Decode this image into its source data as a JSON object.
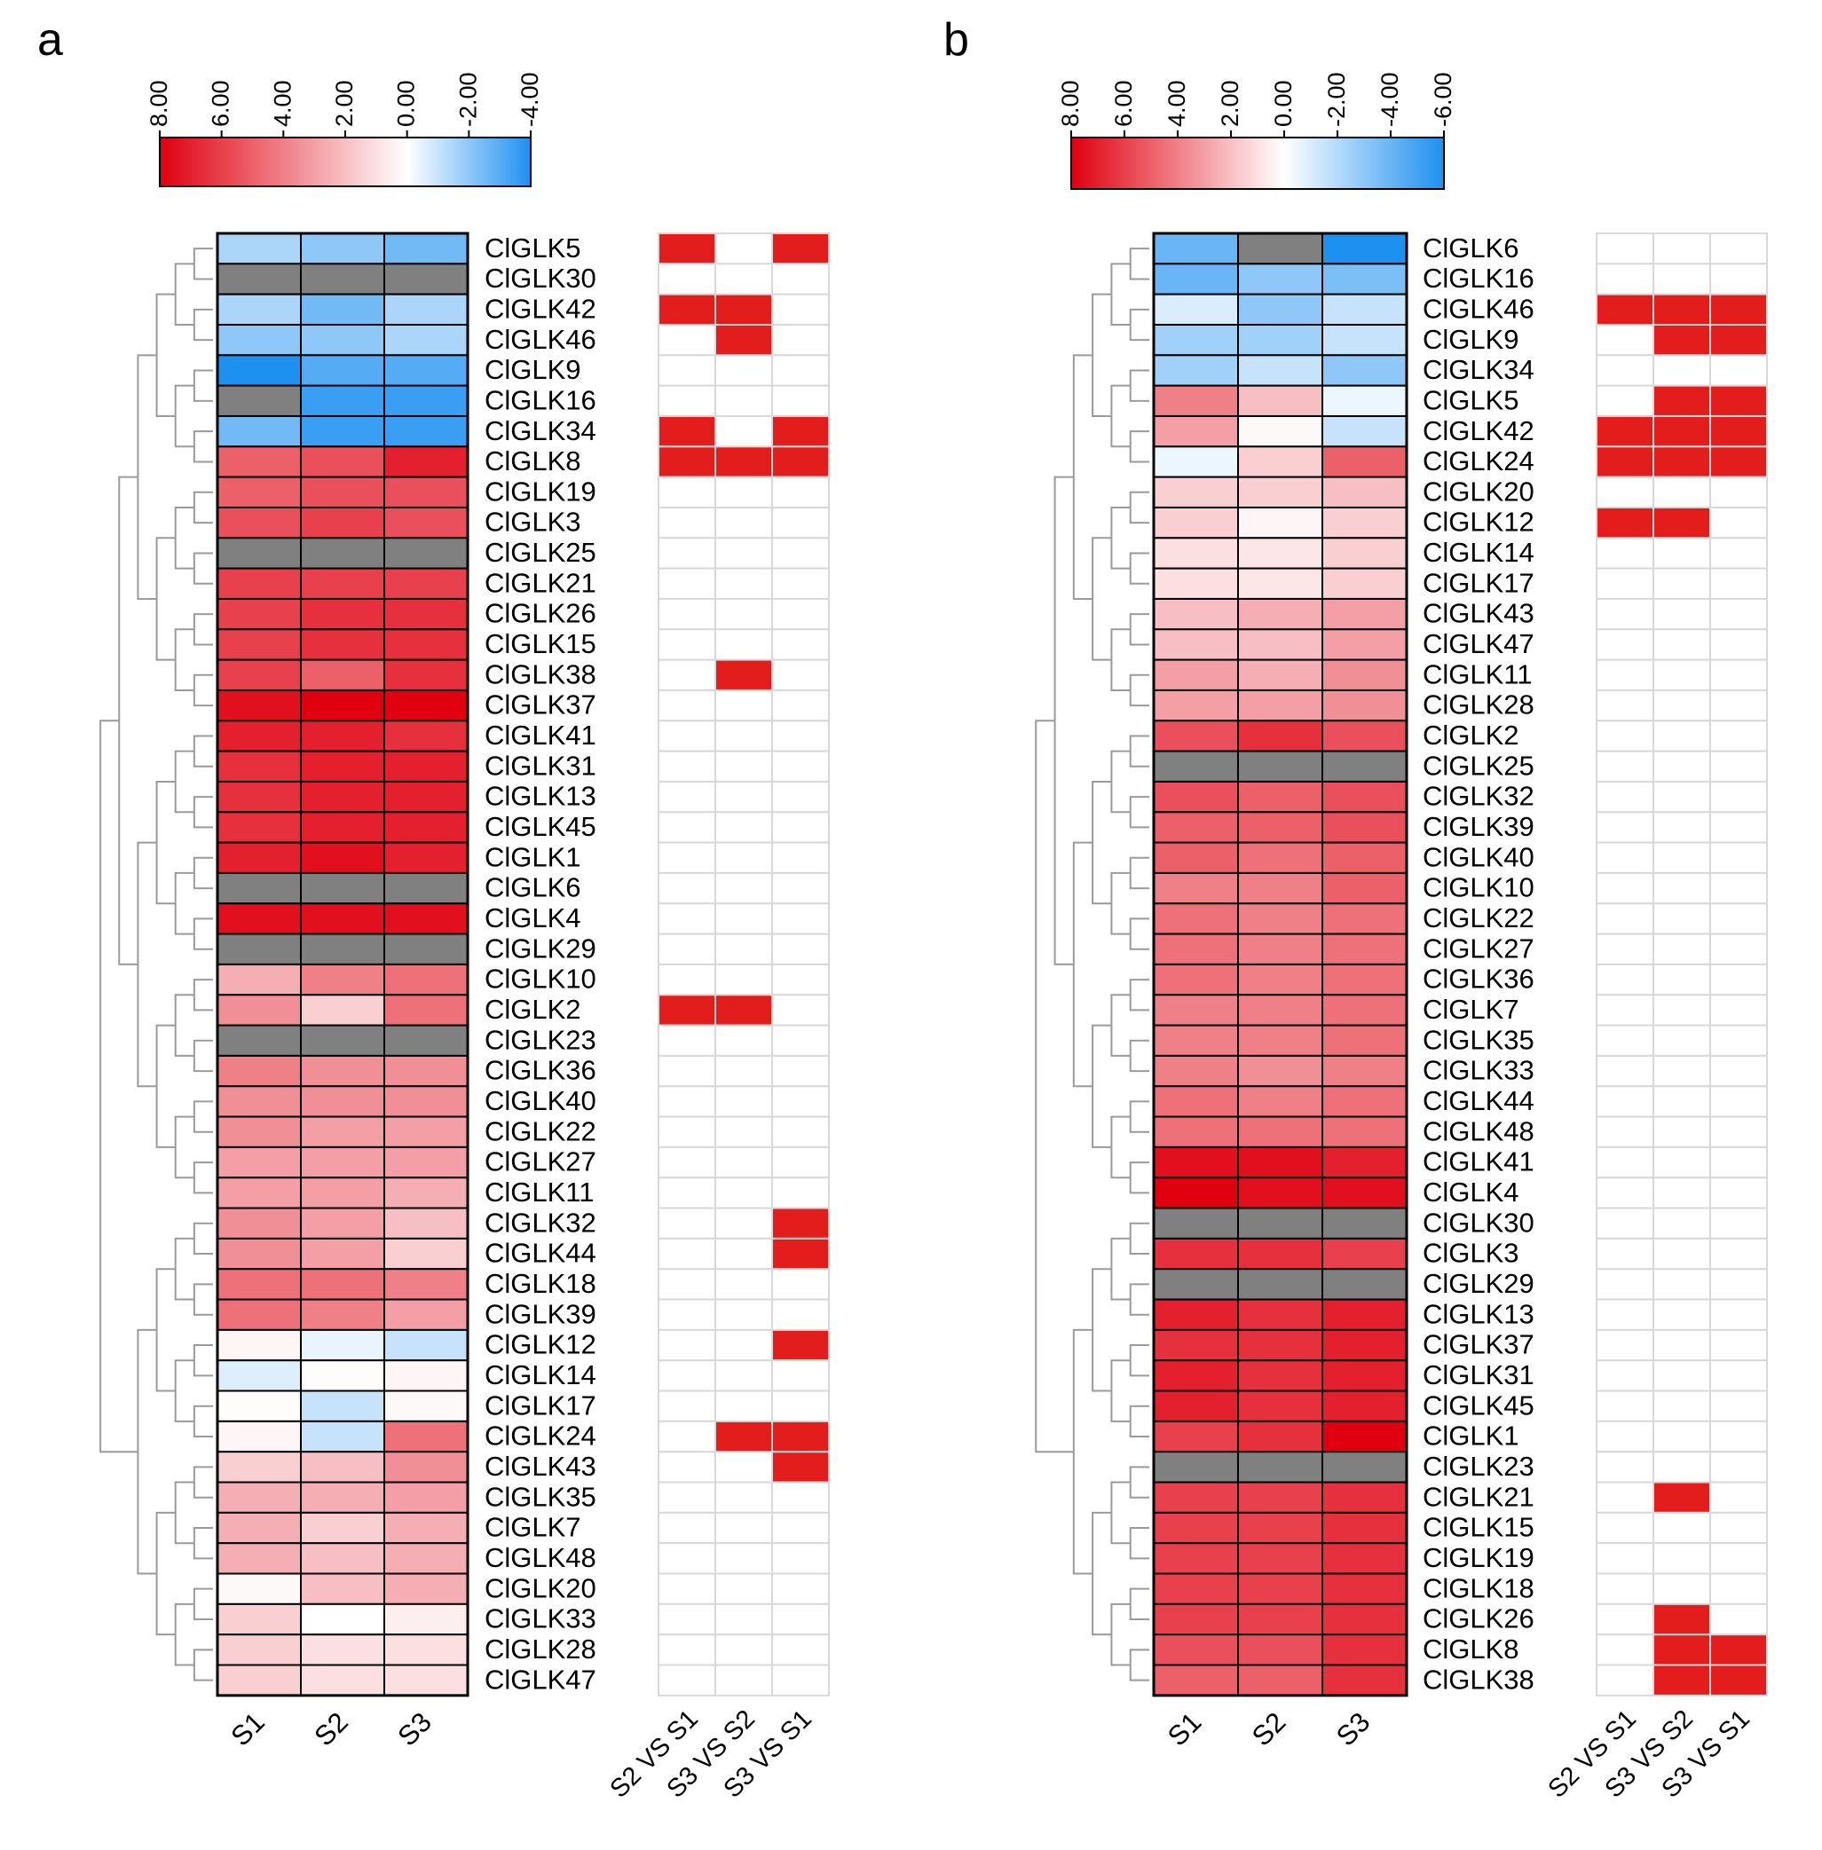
{
  "figure": {
    "panels": [
      {
        "panel_label": "a",
        "colorbar_ticks": [
          "8.00",
          "6.00",
          "4.00",
          "2.00",
          "0.00",
          "-2.00",
          "-4.00"
        ],
        "colorbar_values": [
          8,
          6,
          4,
          2,
          0,
          -2,
          -4
        ],
        "sample_labels": [
          "S1",
          "S2",
          "S3"
        ],
        "comparison_labels": [
          "S2 VS S1",
          "S3 VS S2",
          "S3 VS S1"
        ],
        "genes": [
          "ClGLK5",
          "ClGLK30",
          "ClGLK42",
          "ClGLK46",
          "ClGLK9",
          "ClGLK16",
          "ClGLK34",
          "ClGLK8",
          "ClGLK19",
          "ClGLK3",
          "ClGLK25",
          "ClGLK21",
          "ClGLK26",
          "ClGLK15",
          "ClGLK38",
          "ClGLK37",
          "ClGLK41",
          "ClGLK31",
          "ClGLK13",
          "ClGLK45",
          "ClGLK1",
          "ClGLK6",
          "ClGLK4",
          "ClGLK29",
          "ClGLK10",
          "ClGLK2",
          "ClGLK23",
          "ClGLK36",
          "ClGLK40",
          "ClGLK22",
          "ClGLK27",
          "ClGLK11",
          "ClGLK32",
          "ClGLK44",
          "ClGLK18",
          "ClGLK39",
          "ClGLK12",
          "ClGLK14",
          "ClGLK17",
          "ClGLK24",
          "ClGLK43",
          "ClGLK35",
          "ClGLK7",
          "ClGLK48",
          "ClGLK20",
          "ClGLK33",
          "ClGLK28",
          "ClGLK47"
        ]
      },
      {
        "panel_label": "b",
        "colorbar_ticks": [
          "8.00",
          "6.00",
          "4.00",
          "2.00",
          "0.00",
          "-2.00",
          "-4.00",
          "-6.00"
        ],
        "colorbar_values": [
          8,
          6,
          4,
          2,
          0,
          -2,
          -4,
          -6
        ],
        "sample_labels": [
          "S1",
          "S2",
          "S3"
        ],
        "comparison_labels": [
          "S2 VS S1",
          "S3 VS S2",
          "S3 VS S1"
        ],
        "genes": [
          "ClGLK6",
          "ClGLK16",
          "ClGLK46",
          "ClGLK9",
          "ClGLK34",
          "ClGLK5",
          "ClGLK42",
          "ClGLK24",
          "ClGLK20",
          "ClGLK12",
          "ClGLK14",
          "ClGLK17",
          "ClGLK43",
          "ClGLK47",
          "ClGLK11",
          "ClGLK28",
          "ClGLK2",
          "ClGLK25",
          "ClGLK32",
          "ClGLK39",
          "ClGLK40",
          "ClGLK10",
          "ClGLK22",
          "ClGLK27",
          "ClGLK36",
          "ClGLK7",
          "ClGLK35",
          "ClGLK33",
          "ClGLK44",
          "ClGLK48",
          "ClGLK41",
          "ClGLK4",
          "ClGLK30",
          "ClGLK3",
          "ClGLK29",
          "ClGLK13",
          "ClGLK37",
          "ClGLK31",
          "ClGLK45",
          "ClGLK1",
          "ClGLK23",
          "ClGLK21",
          "ClGLK15",
          "ClGLK19",
          "ClGLK18",
          "ClGLK26",
          "ClGLK8",
          "ClGLK38"
        ]
      }
    ]
  },
  "chart_data": [
    {
      "type": "heatmap",
      "title": "a",
      "color_scale": {
        "min": -4,
        "max": 8,
        "low_color": "#1e90f0",
        "mid_color": "#ffffff",
        "high_color": "#e00010",
        "na_color": "#808080"
      },
      "x": [
        "S1",
        "S2",
        "S3"
      ],
      "y": [
        "ClGLK5",
        "ClGLK30",
        "ClGLK42",
        "ClGLK46",
        "ClGLK9",
        "ClGLK16",
        "ClGLK34",
        "ClGLK8",
        "ClGLK19",
        "ClGLK3",
        "ClGLK25",
        "ClGLK21",
        "ClGLK26",
        "ClGLK15",
        "ClGLK38",
        "ClGLK37",
        "ClGLK41",
        "ClGLK31",
        "ClGLK13",
        "ClGLK45",
        "ClGLK1",
        "ClGLK6",
        "ClGLK4",
        "ClGLK29",
        "ClGLK10",
        "ClGLK2",
        "ClGLK23",
        "ClGLK36",
        "ClGLK40",
        "ClGLK22",
        "ClGLK27",
        "ClGLK11",
        "ClGLK32",
        "ClGLK44",
        "ClGLK18",
        "ClGLK39",
        "ClGLK12",
        "ClGLK14",
        "ClGLK17",
        "ClGLK24",
        "ClGLK43",
        "ClGLK35",
        "ClGLK7",
        "ClGLK48",
        "ClGLK20",
        "ClGLK33",
        "ClGLK28",
        "ClGLK47"
      ],
      "values": [
        [
          -1.5,
          -2,
          -2.5
        ],
        [
          null,
          null,
          null
        ],
        [
          -1.5,
          -2.5,
          -1.5
        ],
        [
          -2,
          -2,
          -1.5
        ],
        [
          -4,
          -3,
          -3
        ],
        [
          null,
          -3.5,
          -3.5
        ],
        [
          -2.5,
          -3.5,
          -3.5
        ],
        [
          5,
          5.5,
          7
        ],
        [
          5,
          5.5,
          5.5
        ],
        [
          5.5,
          6,
          5.5
        ],
        [
          null,
          null,
          null
        ],
        [
          6,
          6,
          6
        ],
        [
          6,
          6.5,
          6.5
        ],
        [
          6,
          6.5,
          6.5
        ],
        [
          6,
          5,
          6.5
        ],
        [
          7.5,
          8,
          8
        ],
        [
          7,
          7,
          6.5
        ],
        [
          6.5,
          7,
          7
        ],
        [
          6.5,
          7,
          7
        ],
        [
          6.5,
          7,
          7
        ],
        [
          7,
          7.5,
          7
        ],
        [
          null,
          null,
          null
        ],
        [
          7.5,
          7.5,
          7.5
        ],
        [
          null,
          null,
          null
        ],
        [
          2.5,
          4,
          4.5
        ],
        [
          3.5,
          1.5,
          4.5
        ],
        [
          null,
          null,
          null
        ],
        [
          4,
          3.5,
          3.5
        ],
        [
          3.5,
          3.5,
          3.5
        ],
        [
          3.5,
          3,
          3
        ],
        [
          3,
          3,
          3
        ],
        [
          3,
          3,
          2.5
        ],
        [
          3.5,
          3,
          2
        ],
        [
          3.5,
          3,
          1.5
        ],
        [
          4.5,
          4.5,
          4
        ],
        [
          4.5,
          4,
          3
        ],
        [
          0.3,
          -0.4,
          -1
        ],
        [
          -0.6,
          0.1,
          0.3
        ],
        [
          0.1,
          -1,
          0.2
        ],
        [
          0.3,
          -1,
          4.5
        ],
        [
          1.5,
          2,
          3.5
        ],
        [
          2.5,
          2.5,
          3
        ],
        [
          2.5,
          1.5,
          2.5
        ],
        [
          2.5,
          2,
          2.5
        ],
        [
          0.2,
          2,
          2.5
        ],
        [
          1.5,
          0,
          0.5
        ],
        [
          1.5,
          1,
          1
        ],
        [
          1.5,
          1,
          1
        ]
      ],
      "significance_columns": [
        "S2 VS S1",
        "S3 VS S2",
        "S3 VS S1"
      ],
      "significant": [
        [
          1,
          0,
          1
        ],
        [
          0,
          0,
          0
        ],
        [
          1,
          1,
          0
        ],
        [
          0,
          1,
          0
        ],
        [
          0,
          0,
          0
        ],
        [
          0,
          0,
          0
        ],
        [
          1,
          0,
          1
        ],
        [
          1,
          1,
          1
        ],
        [
          0,
          0,
          0
        ],
        [
          0,
          0,
          0
        ],
        [
          0,
          0,
          0
        ],
        [
          0,
          0,
          0
        ],
        [
          0,
          0,
          0
        ],
        [
          0,
          0,
          0
        ],
        [
          0,
          1,
          0
        ],
        [
          0,
          0,
          0
        ],
        [
          0,
          0,
          0
        ],
        [
          0,
          0,
          0
        ],
        [
          0,
          0,
          0
        ],
        [
          0,
          0,
          0
        ],
        [
          0,
          0,
          0
        ],
        [
          0,
          0,
          0
        ],
        [
          0,
          0,
          0
        ],
        [
          0,
          0,
          0
        ],
        [
          0,
          0,
          0
        ],
        [
          1,
          1,
          0
        ],
        [
          0,
          0,
          0
        ],
        [
          0,
          0,
          0
        ],
        [
          0,
          0,
          0
        ],
        [
          0,
          0,
          0
        ],
        [
          0,
          0,
          0
        ],
        [
          0,
          0,
          0
        ],
        [
          0,
          0,
          1
        ],
        [
          0,
          0,
          1
        ],
        [
          0,
          0,
          0
        ],
        [
          0,
          0,
          0
        ],
        [
          0,
          0,
          1
        ],
        [
          0,
          0,
          0
        ],
        [
          0,
          0,
          0
        ],
        [
          0,
          1,
          1
        ],
        [
          0,
          0,
          1
        ],
        [
          0,
          0,
          0
        ],
        [
          0,
          0,
          0
        ],
        [
          0,
          0,
          0
        ],
        [
          0,
          0,
          0
        ],
        [
          0,
          0,
          0
        ],
        [
          0,
          0,
          0
        ],
        [
          0,
          0,
          0
        ]
      ],
      "significant_color": "#e31c1c"
    },
    {
      "type": "heatmap",
      "title": "b",
      "color_scale": {
        "min": -6,
        "max": 8,
        "low_color": "#1e90f0",
        "mid_color": "#ffffff",
        "high_color": "#e00010",
        "na_color": "#808080"
      },
      "x": [
        "S1",
        "S2",
        "S3"
      ],
      "y": [
        "ClGLK6",
        "ClGLK16",
        "ClGLK46",
        "ClGLK9",
        "ClGLK34",
        "ClGLK5",
        "ClGLK42",
        "ClGLK24",
        "ClGLK20",
        "ClGLK12",
        "ClGLK14",
        "ClGLK17",
        "ClGLK43",
        "ClGLK47",
        "ClGLK11",
        "ClGLK28",
        "ClGLK2",
        "ClGLK25",
        "ClGLK32",
        "ClGLK39",
        "ClGLK40",
        "ClGLK10",
        "ClGLK22",
        "ClGLK27",
        "ClGLK36",
        "ClGLK7",
        "ClGLK35",
        "ClGLK33",
        "ClGLK44",
        "ClGLK48",
        "ClGLK41",
        "ClGLK4",
        "ClGLK30",
        "ClGLK3",
        "ClGLK29",
        "ClGLK13",
        "ClGLK37",
        "ClGLK31",
        "ClGLK45",
        "ClGLK1",
        "ClGLK23",
        "ClGLK21",
        "ClGLK15",
        "ClGLK19",
        "ClGLK18",
        "ClGLK26",
        "ClGLK8",
        "ClGLK38"
      ],
      "values": [
        [
          -4,
          null,
          -6
        ],
        [
          -4,
          -3,
          -3.5
        ],
        [
          -1,
          -3,
          -1.5
        ],
        [
          -2.5,
          -2.5,
          -1.5
        ],
        [
          -2.5,
          -1.5,
          -3
        ],
        [
          4,
          2,
          -0.5
        ],
        [
          3,
          0.2,
          -1.5
        ],
        [
          -0.5,
          1.5,
          5
        ],
        [
          1.5,
          1.5,
          2
        ],
        [
          1.5,
          0.3,
          1.5
        ],
        [
          1,
          0.8,
          1.5
        ],
        [
          1,
          0.8,
          1.5
        ],
        [
          2,
          2.5,
          3
        ],
        [
          2,
          2,
          3
        ],
        [
          3,
          2.5,
          3.5
        ],
        [
          3,
          3,
          3.5
        ],
        [
          5.5,
          6.5,
          5.5
        ],
        [
          null,
          null,
          null
        ],
        [
          5.5,
          5,
          5.5
        ],
        [
          5,
          5,
          5.5
        ],
        [
          5,
          4.5,
          5
        ],
        [
          4,
          4,
          5
        ],
        [
          4.5,
          4,
          4.5
        ],
        [
          4.5,
          4,
          4.5
        ],
        [
          4.5,
          4,
          4.5
        ],
        [
          4,
          4,
          4.5
        ],
        [
          4,
          4,
          4.5
        ],
        [
          4,
          3.5,
          4
        ],
        [
          4.5,
          4,
          4.5
        ],
        [
          4.5,
          4.5,
          4.5
        ],
        [
          7.5,
          7.5,
          7
        ],
        [
          8,
          7.5,
          7.5
        ],
        [
          null,
          null,
          null
        ],
        [
          6.5,
          6.5,
          6
        ],
        [
          null,
          null,
          null
        ],
        [
          7,
          6.5,
          7
        ],
        [
          6.5,
          6.5,
          7
        ],
        [
          7,
          6.5,
          7
        ],
        [
          7,
          6.5,
          7
        ],
        [
          6,
          6.5,
          8
        ],
        [
          null,
          null,
          null
        ],
        [
          6,
          6,
          6.5
        ],
        [
          6,
          6,
          6.5
        ],
        [
          6,
          6,
          6.5
        ],
        [
          6,
          6,
          6.5
        ],
        [
          6,
          6,
          6.5
        ],
        [
          5.5,
          5.5,
          6.5
        ],
        [
          5,
          5,
          6.5
        ]
      ],
      "significance_columns": [
        "S2 VS S1",
        "S3 VS S2",
        "S3 VS S1"
      ],
      "significant": [
        [
          0,
          0,
          0
        ],
        [
          0,
          0,
          0
        ],
        [
          1,
          1,
          1
        ],
        [
          0,
          1,
          1
        ],
        [
          0,
          0,
          0
        ],
        [
          0,
          1,
          1
        ],
        [
          1,
          1,
          1
        ],
        [
          1,
          1,
          1
        ],
        [
          0,
          0,
          0
        ],
        [
          1,
          1,
          0
        ],
        [
          0,
          0,
          0
        ],
        [
          0,
          0,
          0
        ],
        [
          0,
          0,
          0
        ],
        [
          0,
          0,
          0
        ],
        [
          0,
          0,
          0
        ],
        [
          0,
          0,
          0
        ],
        [
          0,
          0,
          0
        ],
        [
          0,
          0,
          0
        ],
        [
          0,
          0,
          0
        ],
        [
          0,
          0,
          0
        ],
        [
          0,
          0,
          0
        ],
        [
          0,
          0,
          0
        ],
        [
          0,
          0,
          0
        ],
        [
          0,
          0,
          0
        ],
        [
          0,
          0,
          0
        ],
        [
          0,
          0,
          0
        ],
        [
          0,
          0,
          0
        ],
        [
          0,
          0,
          0
        ],
        [
          0,
          0,
          0
        ],
        [
          0,
          0,
          0
        ],
        [
          0,
          0,
          0
        ],
        [
          0,
          0,
          0
        ],
        [
          0,
          0,
          0
        ],
        [
          0,
          0,
          0
        ],
        [
          0,
          0,
          0
        ],
        [
          0,
          0,
          0
        ],
        [
          0,
          0,
          0
        ],
        [
          0,
          0,
          0
        ],
        [
          0,
          0,
          0
        ],
        [
          0,
          0,
          0
        ],
        [
          0,
          0,
          0
        ],
        [
          0,
          1,
          0
        ],
        [
          0,
          0,
          0
        ],
        [
          0,
          0,
          0
        ],
        [
          0,
          0,
          0
        ],
        [
          0,
          1,
          0
        ],
        [
          0,
          1,
          1
        ],
        [
          0,
          1,
          1
        ]
      ],
      "significant_color": "#e31c1c"
    }
  ]
}
